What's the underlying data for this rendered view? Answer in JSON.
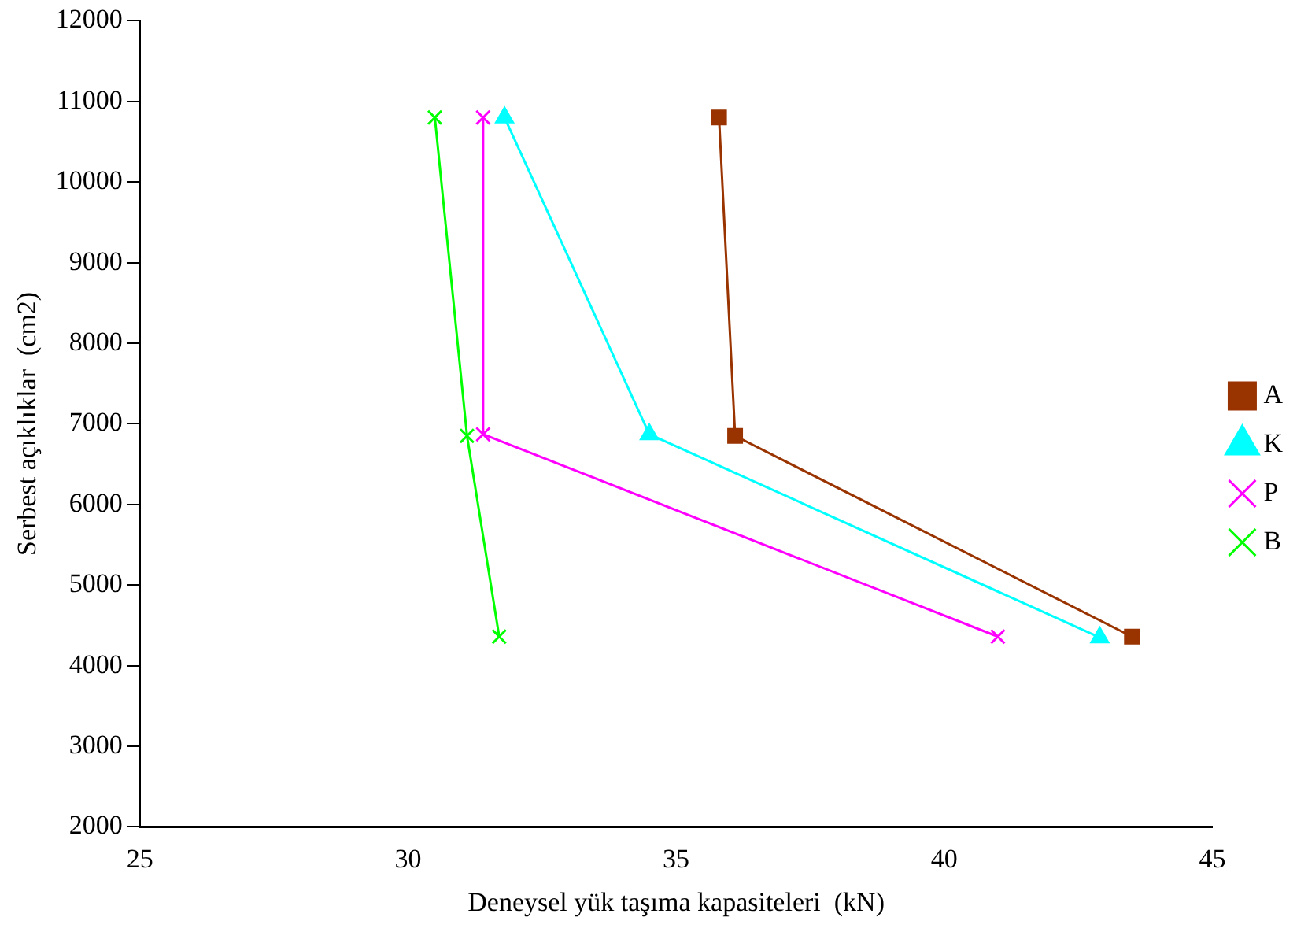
{
  "chart_data": {
    "type": "line",
    "xlabel": "Deneysel yük taşıma kapasiteleri  (kN)",
    "ylabel": "Serbest açıklıklar  (cm2)",
    "xlim": [
      25,
      45
    ],
    "xticks": [
      25,
      30,
      35,
      40,
      45
    ],
    "ylim": [
      2000,
      12000
    ],
    "yticks": [
      2000,
      3000,
      4000,
      5000,
      6000,
      7000,
      8000,
      9000,
      10000,
      11000,
      12000
    ],
    "grid": false,
    "legend": "right",
    "line_style": "solid",
    "series": [
      {
        "name": "A",
        "color": "#993300",
        "marker": "square",
        "x": [
          35.8,
          36.1,
          43.5
        ],
        "values": [
          10800,
          6850,
          4360
        ]
      },
      {
        "name": "K",
        "color": "#00ffff",
        "marker": "triangle",
        "x": [
          31.8,
          34.5,
          42.9
        ],
        "values": [
          10800,
          6870,
          4350
        ]
      },
      {
        "name": "P",
        "color": "#ff00ff",
        "marker": "cross",
        "x": [
          31.4,
          31.4,
          41.0
        ],
        "values": [
          10800,
          6870,
          4360
        ]
      },
      {
        "name": "B",
        "color": "#00ff00",
        "marker": "cross",
        "x": [
          30.5,
          31.1,
          31.7
        ],
        "values": [
          10800,
          6850,
          4360
        ]
      }
    ]
  }
}
